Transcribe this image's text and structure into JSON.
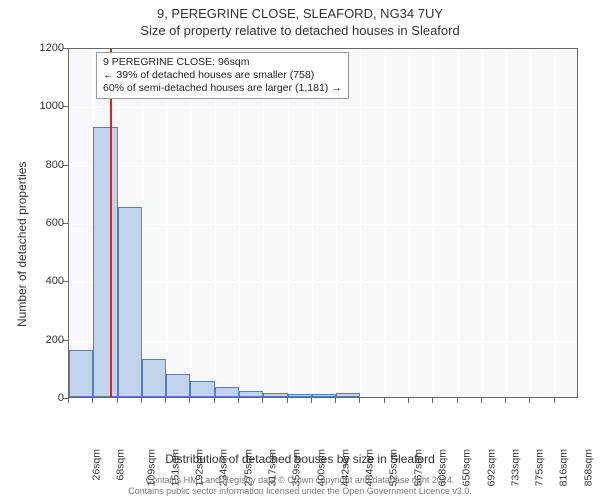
{
  "chart": {
    "type": "histogram",
    "title_main": "9, PEREGRINE CLOSE, SLEAFORD, NG34 7UY",
    "title_sub": "Size of property relative to detached houses in Sleaford",
    "ylabel": "Number of detached properties",
    "xlabel": "Distribution of detached houses by size in Sleaford",
    "background_color": "#f6f8fc",
    "bar_fill": "#c2d4eb",
    "bar_border": "#5b7fb0",
    "marker_color": "#d22",
    "marker_x_value": 96,
    "ylim": [
      0,
      1200
    ],
    "ytick_step": 200,
    "yticks": [
      0,
      200,
      400,
      600,
      800,
      1000,
      1200
    ],
    "x_start": 26,
    "x_bin_width": 41.6,
    "x_tick_labels": [
      "26sqm",
      "68sqm",
      "109sqm",
      "151sqm",
      "192sqm",
      "234sqm",
      "275sqm",
      "317sqm",
      "359sqm",
      "400sqm",
      "442sqm",
      "484sqm",
      "525sqm",
      "567sqm",
      "608sqm",
      "650sqm",
      "692sqm",
      "733sqm",
      "775sqm",
      "816sqm",
      "858sqm"
    ],
    "values": [
      160,
      925,
      650,
      130,
      80,
      55,
      35,
      20,
      15,
      10,
      10,
      15,
      0,
      0,
      0,
      0,
      0,
      0,
      0,
      0,
      0
    ],
    "title_fontsize": 13,
    "label_fontsize": 12,
    "tick_fontsize": 11
  },
  "annotation": {
    "line1": "9 PEREGRINE CLOSE: 96sqm",
    "line2": "← 39% of detached houses are smaller (758)",
    "line3": "60% of semi-detached houses are larger (1,181) →"
  },
  "attribution": {
    "line1": "Contains HM Land Registry data © Crown copyright and database right 2024.",
    "line2": "Contains public sector information licensed under the Open Government Licence v3.0."
  }
}
